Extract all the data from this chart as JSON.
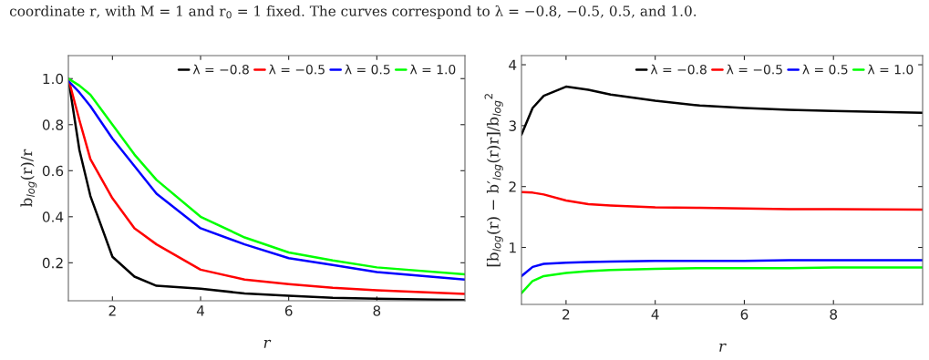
{
  "chart_data": [
    {
      "type": "line",
      "annotations": [
        "coordinate r, with M = 1 and r$_{0}$ = 1 fixed. The curves correspond to λ = −0.8, −0.5, 0.5, and 1.0."
      ],
      "xlabel": "r",
      "ylabel": "b$_{log}$(r)/r",
      "xlim": [
        1,
        10
      ],
      "ylim": [
        0.035,
        1.1
      ],
      "xticks": [
        2,
        4,
        6,
        8
      ],
      "yticks": [
        0.2,
        0.4,
        0.6,
        0.8,
        {
          "value": 1.0,
          "label": "1.0"
        }
      ],
      "legend": "top right",
      "grid": false,
      "marker": "none",
      "line_style": "solid",
      "x": [
        1,
        1.25,
        1.5,
        2,
        2.5,
        3,
        4,
        5,
        6,
        7,
        8,
        10
      ],
      "series": [
        {
          "name": "λ = −0.8",
          "color": "#000000",
          "values": [
            1.0,
            0.69,
            0.49,
            0.226,
            0.14,
            0.1,
            0.087,
            0.067,
            0.057,
            0.048,
            0.044,
            0.038
          ]
        },
        {
          "name": "λ = −0.5",
          "color": "#ff0000",
          "values": [
            1.0,
            0.82,
            0.65,
            0.48,
            0.35,
            0.28,
            0.17,
            0.127,
            0.107,
            0.091,
            0.081,
            0.065
          ]
        },
        {
          "name": "λ = 0.5",
          "color": "#0000ff",
          "values": [
            0.99,
            0.94,
            0.88,
            0.74,
            0.62,
            0.5,
            0.35,
            0.28,
            0.22,
            0.19,
            0.16,
            0.127
          ]
        },
        {
          "name": "λ = 1.0",
          "color": "#00ff00",
          "values": [
            1.0,
            0.97,
            0.93,
            0.8,
            0.67,
            0.56,
            0.4,
            0.31,
            0.245,
            0.21,
            0.18,
            0.15
          ]
        }
      ]
    },
    {
      "type": "line",
      "xlabel": "r",
      "ylabel": "[b$_{log}$(r) − b′$_{log}$(r)r]/b$_{log}$$^{2}$",
      "xlim": [
        1,
        10
      ],
      "ylim": [
        0.065,
        4.15
      ],
      "xticks": [
        2,
        4,
        6,
        8
      ],
      "yticks": [
        1,
        2,
        3,
        4
      ],
      "legend": "top right",
      "grid": false,
      "marker": "none",
      "line_style": "solid",
      "x": [
        1,
        1.25,
        1.5,
        2,
        2.5,
        3,
        4,
        5,
        6,
        7,
        8,
        10
      ],
      "series": [
        {
          "name": "λ = −0.8",
          "color": "#000000",
          "values": [
            2.85,
            3.29,
            3.49,
            3.64,
            3.59,
            3.51,
            3.41,
            3.33,
            3.29,
            3.26,
            3.24,
            3.21
          ]
        },
        {
          "name": "λ = −0.5",
          "color": "#ff0000",
          "values": [
            1.91,
            1.9,
            1.87,
            1.77,
            1.71,
            1.69,
            1.66,
            1.65,
            1.64,
            1.63,
            1.63,
            1.62
          ]
        },
        {
          "name": "λ = 0.5",
          "color": "#0000ff",
          "values": [
            0.53,
            0.68,
            0.73,
            0.75,
            0.76,
            0.77,
            0.78,
            0.78,
            0.78,
            0.79,
            0.79,
            0.79
          ]
        },
        {
          "name": "λ = 1.0",
          "color": "#00ff00",
          "values": [
            0.25,
            0.45,
            0.53,
            0.58,
            0.61,
            0.63,
            0.65,
            0.66,
            0.66,
            0.66,
            0.67,
            0.67
          ]
        }
      ]
    }
  ]
}
